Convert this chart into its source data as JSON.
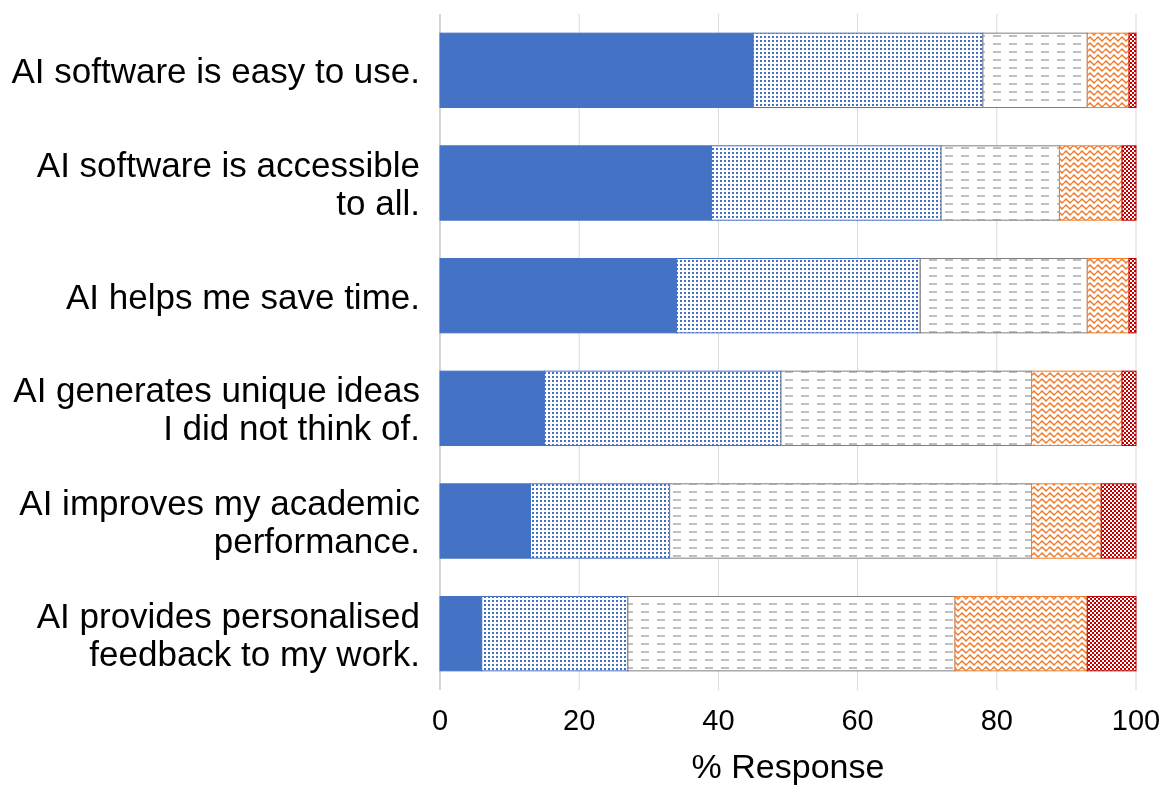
{
  "chart_data": {
    "type": "bar",
    "orientation": "horizontal",
    "stacked": true,
    "xlabel": "% Response",
    "categories": [
      "AI software is easy to use.",
      "AI software is accessible to all.",
      "AI helps me save time.",
      "AI generates unique ideas I did not think of.",
      "AI improves my academic performance.",
      "AI provides personalised feedback to my work."
    ],
    "series": [
      {
        "color": "#4472c4",
        "values": [
          45,
          39,
          34,
          15,
          13,
          6
        ]
      },
      {
        "color": "#4472c4",
        "values": [
          33,
          33,
          35,
          34,
          20,
          21
        ]
      },
      {
        "color": "#7f7f7f",
        "values": [
          15,
          17,
          24,
          36,
          52,
          47
        ]
      },
      {
        "color": "#ed7d31",
        "values": [
          6,
          9,
          6,
          13,
          10,
          19
        ]
      },
      {
        "color": "#c00000",
        "values": [
          1,
          2,
          1,
          2,
          5,
          7
        ]
      }
    ],
    "xlim": [
      0,
      100
    ],
    "xticks": [
      0,
      20,
      40,
      60,
      80,
      100
    ],
    "grid": "x"
  }
}
